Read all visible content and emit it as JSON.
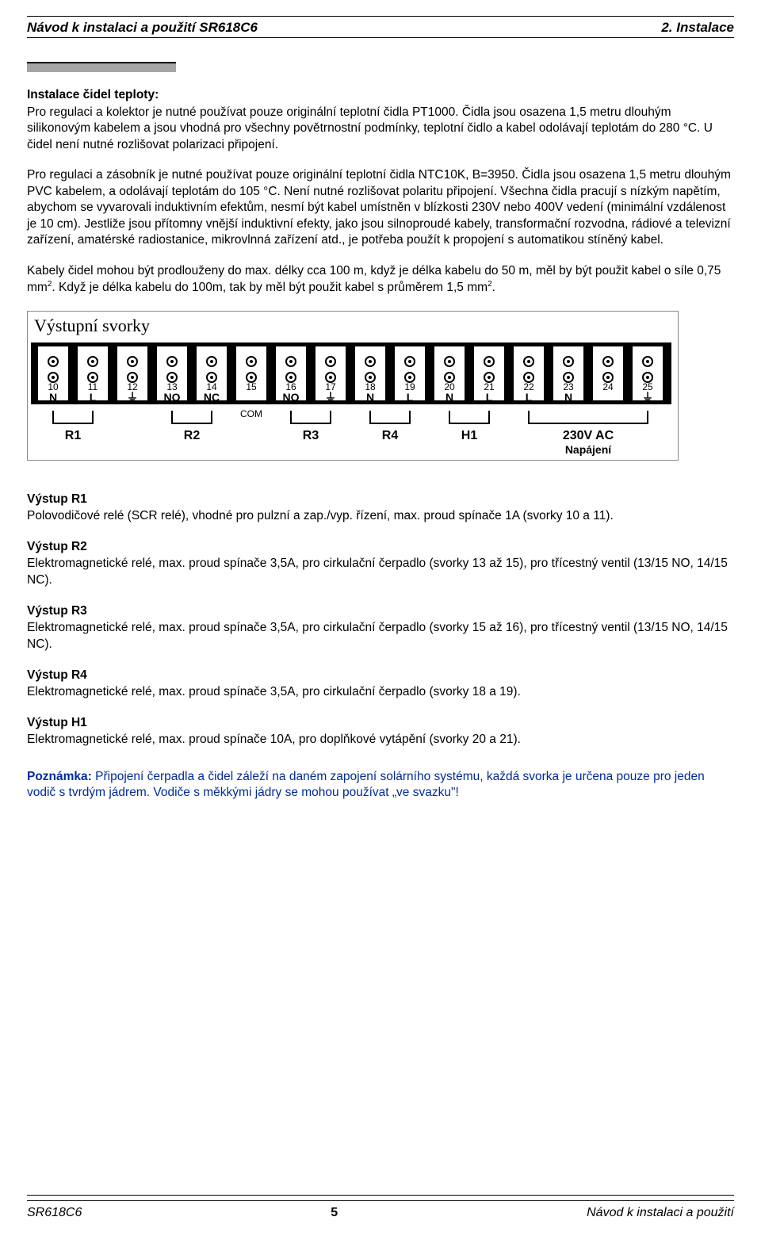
{
  "header": {
    "left": "Návod k instalaci a použití SR618C6",
    "right": "2. Instalace"
  },
  "section_title": "Instalace čidel teploty:",
  "para1": "Pro regulaci a kolektor je nutné používat pouze originální teplotní čidla PT1000. Čidla jsou osazena 1,5 metru dlouhým silikonovým kabelem a jsou vhodná pro všechny povětrnostní podmínky, teplotní čidlo a kabel odolávají teplotám do 280 °C. U čidel není nutné rozlišovat polarizaci připojení.",
  "para2": "Pro regulaci a zásobník je nutné používat pouze originální teplotní čidla NTC10K, B=3950. Čidla jsou osazena 1,5 metru dlouhým PVC kabelem, a odolávají teplotám do 105 °C. Není nutné rozlišovat polaritu připojení. Všechna čidla pracují s nízkým napětím, abychom se vyvarovali induktivním efektům, nesmí být kabel umístněn v blízkosti 230V nebo 400V vedení (minimální vzdálenost je 10 cm). Jestliže jsou přítomny vnější induktivní efekty, jako jsou silnoproudé kabely, transformační rozvodna, rádiové a televizní zařízení, amatérské radiostanice, mikrovlnná zařízení atd., je potřeba použít k propojení s automatikou stíněný kabel.",
  "para3a": "Kabely čidel mohou být prodlouženy do max. délky cca 100 m, když je délka kabelu do 50 m, měl by být použit kabel o síle 0,75 mm",
  "para3b": "Když je délka kabelu do 100m, tak by měl být použit kabel s průměrem 1,5 mm",
  "sup2": "2",
  "terminal_caption": "Výstupní svorky",
  "terminals": {
    "numbers": [
      "10",
      "11",
      "12",
      "13",
      "14",
      "15",
      "16",
      "17",
      "18",
      "19",
      "20",
      "21",
      "22",
      "23",
      "24",
      "25"
    ],
    "letters": [
      "N",
      "L",
      "",
      "NO",
      "NC",
      "",
      "NO",
      "NC",
      "N",
      "L",
      "N",
      "L",
      "L",
      "N",
      ""
    ],
    "gnd_char": "⏚",
    "com_label": "COM",
    "group_labels": [
      "R1",
      "R2",
      "R3",
      "R4",
      "H1",
      "230V AC"
    ],
    "napajeni": "Napájení",
    "colors": {
      "stroke": "#000000",
      "fill_hole": "#000000",
      "bg": "#ffffff"
    }
  },
  "outputs": [
    {
      "label": "Výstup R1",
      "text": "Polovodičové relé (SCR relé), vhodné pro pulzní a zap./vyp. řízení, max. proud spínače 1A (svorky 10 a 11)."
    },
    {
      "label": "Výstup R2",
      "text": "Elektromagnetické relé, max. proud spínače 3,5A, pro cirkulační čerpadlo (svorky 13 až 15), pro třícestný ventil (13/15 NO, 14/15 NC)."
    },
    {
      "label": "Výstup R3",
      "text": "Elektromagnetické relé, max. proud spínače 3,5A, pro cirkulační čerpadlo (svorky 15 až 16), pro třícestný ventil (13/15 NO, 14/15 NC)."
    },
    {
      "label": "Výstup R4",
      "text": "Elektromagnetické relé, max. proud spínače 3,5A, pro cirkulační čerpadlo (svorky 18 a 19)."
    },
    {
      "label": "Výstup H1",
      "text": "Elektromagnetické relé, max. proud spínače 10A, pro doplňkové vytápění (svorky 20 a 21)."
    }
  ],
  "note_label": "Poznámka:",
  "note_text": " Připojení čerpadla a čidel záleží na daném zapojení solárního systému, každá svorka je určena pouze pro jeden vodič s tvrdým jádrem. Vodiče s měkkými jádry se mohou používat „ve svazku\"!",
  "footer": {
    "left": "SR618C6",
    "page": "5",
    "right": "Návod k instalaci a použití"
  }
}
